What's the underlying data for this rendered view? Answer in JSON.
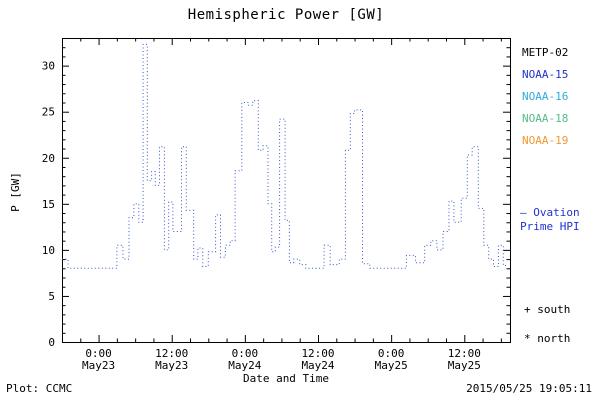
{
  "chart_data": {
    "type": "line",
    "title": "Hemispheric Power [GW]",
    "xlabel": "Date and Time",
    "ylabel": "P [GW]",
    "ylim": [
      0,
      33
    ],
    "xlim_hours": [
      -6,
      67.5
    ],
    "y_ticks": [
      0,
      5,
      10,
      15,
      20,
      25,
      30
    ],
    "x_ticks": [
      {
        "hours": 0,
        "time": "0:00",
        "date": "May23"
      },
      {
        "hours": 12,
        "time": "12:00",
        "date": "May23"
      },
      {
        "hours": 24,
        "time": "0:00",
        "date": "May24"
      },
      {
        "hours": 36,
        "time": "12:00",
        "date": "May24"
      },
      {
        "hours": 48,
        "time": "0:00",
        "date": "May25"
      },
      {
        "hours": 60,
        "time": "12:00",
        "date": "May25"
      }
    ],
    "line_color": "#3355cc",
    "line_style": "dotted",
    "step": true,
    "grid": false,
    "legend_position": "right",
    "series": [
      {
        "name": "Ovation Prime HPI",
        "units": "GW",
        "x_unit": "hours since 2015-05-23 00:00 UT",
        "points": [
          [
            -6,
            9
          ],
          [
            -5,
            8
          ],
          [
            3,
            10.5
          ],
          [
            4,
            9
          ],
          [
            5,
            13.5
          ],
          [
            5.8,
            15
          ],
          [
            6.6,
            13
          ],
          [
            7.3,
            32.3
          ],
          [
            8,
            17.5
          ],
          [
            8.7,
            18.5
          ],
          [
            9.3,
            17
          ],
          [
            10,
            21.2
          ],
          [
            10.8,
            10
          ],
          [
            11.5,
            15.2
          ],
          [
            12.2,
            12
          ],
          [
            13.6,
            21.2
          ],
          [
            14.4,
            14.3
          ],
          [
            15.6,
            9
          ],
          [
            16.3,
            10.2
          ],
          [
            17.1,
            8.2
          ],
          [
            18,
            9.8
          ],
          [
            19.2,
            13.8
          ],
          [
            20,
            9.2
          ],
          [
            20.8,
            10.5
          ],
          [
            21.6,
            11
          ],
          [
            22.4,
            18.6
          ],
          [
            23.5,
            26
          ],
          [
            24.5,
            25.7
          ],
          [
            25.3,
            26.2
          ],
          [
            26.2,
            20.8
          ],
          [
            27,
            21.3
          ],
          [
            27.8,
            15
          ],
          [
            28.4,
            9.8
          ],
          [
            29,
            10.3
          ],
          [
            29.7,
            24.2
          ],
          [
            30.6,
            13.2
          ],
          [
            31.3,
            8.6
          ],
          [
            32,
            9
          ],
          [
            33,
            8.4
          ],
          [
            34,
            8
          ],
          [
            37,
            10.5
          ],
          [
            38,
            8.4
          ],
          [
            39.5,
            9
          ],
          [
            40.5,
            20.8
          ],
          [
            41.3,
            24.8
          ],
          [
            42,
            25.2
          ],
          [
            43.3,
            8.5
          ],
          [
            44.5,
            8
          ],
          [
            50.5,
            9.4
          ],
          [
            52,
            8.6
          ],
          [
            53.5,
            10.5
          ],
          [
            54.5,
            11
          ],
          [
            55.5,
            10
          ],
          [
            56.5,
            12
          ],
          [
            57.5,
            15.3
          ],
          [
            58.3,
            13
          ],
          [
            59.5,
            15.6
          ],
          [
            60.5,
            20.3
          ],
          [
            61.3,
            21.2
          ],
          [
            62.3,
            14.5
          ],
          [
            63.2,
            10.5
          ],
          [
            64,
            9
          ],
          [
            64.8,
            8.2
          ],
          [
            65.6,
            10.5
          ],
          [
            66.4,
            8.3
          ],
          [
            67.1,
            8.3
          ]
        ]
      }
    ]
  },
  "legend": {
    "satellites": [
      {
        "label": "METP-02",
        "color": "#000000"
      },
      {
        "label": "NOAA-15",
        "color": "#2233cc"
      },
      {
        "label": "NOAA-16",
        "color": "#33aadd"
      },
      {
        "label": "NOAA-18",
        "color": "#55bb88"
      },
      {
        "label": "NOAA-19",
        "color": "#ee9933"
      }
    ],
    "line_label_lines": [
      "— Ovation",
      "Prime HPI"
    ],
    "line_label_color": "#2233cc",
    "markers": [
      {
        "symbol": "+",
        "label": "south"
      },
      {
        "symbol": "*",
        "label": "north"
      }
    ]
  },
  "footer": {
    "plot_credit": "Plot: CCMC",
    "timestamp": "2015/05/25 19:05:11"
  }
}
